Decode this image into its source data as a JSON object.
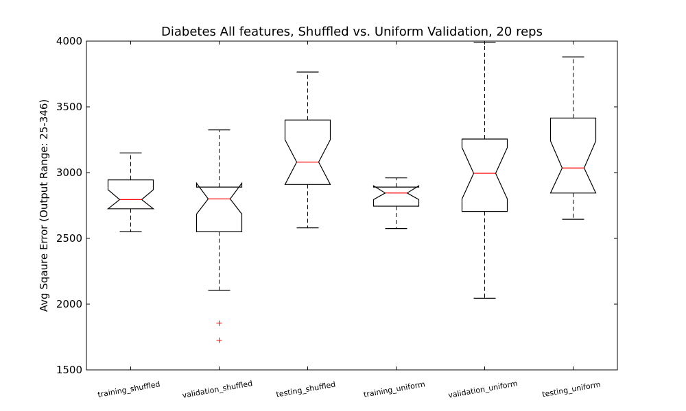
{
  "chart_data": {
    "type": "boxplot",
    "title": "Diabetes All features, Shuffled vs. Uniform Validation, 20 reps",
    "xlabel": "",
    "ylabel": "Avg Sqaure Error (Output Range: 25-346)",
    "ylim": [
      1500,
      4000
    ],
    "yticks": [
      1500,
      2000,
      2500,
      3000,
      3500,
      4000
    ],
    "notched": true,
    "grid": false,
    "colors": {
      "box": "#000000",
      "median": "#ff0000",
      "flier": "#ff0000"
    },
    "categories": [
      "training_shuffled",
      "validation_shuffled",
      "testing_shuffled",
      "training_uniform",
      "validation_uniform",
      "testing_uniform"
    ],
    "boxes": [
      {
        "whisker_low": 2550,
        "q1": 2725,
        "median": 2795,
        "q3": 2945,
        "whisker_high": 3150,
        "notch_low": 2725,
        "notch_high": 2870,
        "fliers": []
      },
      {
        "whisker_low": 2105,
        "q1": 2550,
        "median": 2800,
        "q3": 2890,
        "whisker_high": 3325,
        "notch_low": 2685,
        "notch_high": 2920,
        "fliers": [
          1855,
          1725
        ]
      },
      {
        "whisker_low": 2580,
        "q1": 2910,
        "median": 3080,
        "q3": 3400,
        "whisker_high": 3765,
        "notch_low": 2910,
        "notch_high": 3250,
        "fliers": []
      },
      {
        "whisker_low": 2575,
        "q1": 2745,
        "median": 2845,
        "q3": 2890,
        "whisker_high": 2960,
        "notch_low": 2795,
        "notch_high": 2900,
        "fliers": []
      },
      {
        "whisker_low": 2045,
        "q1": 2705,
        "median": 2995,
        "q3": 3255,
        "whisker_high": 3990,
        "notch_low": 2800,
        "notch_high": 3190,
        "fliers": []
      },
      {
        "whisker_low": 2645,
        "q1": 2845,
        "median": 3035,
        "q3": 3415,
        "whisker_high": 3880,
        "notch_low": 2845,
        "notch_high": 3240,
        "fliers": []
      }
    ]
  }
}
